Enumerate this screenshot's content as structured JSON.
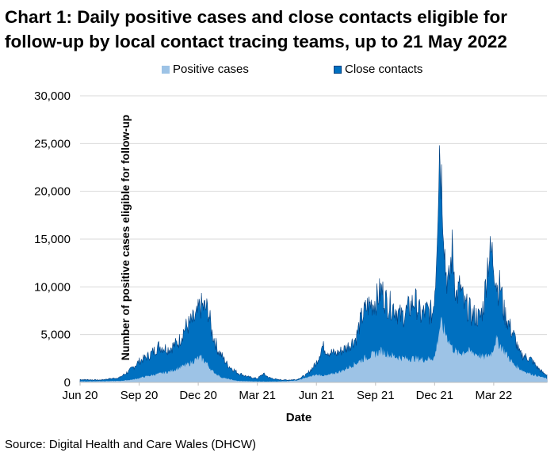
{
  "title": "Chart 1: Daily positive cases and close contacts eligible for follow-up by local contact tracing teams, up to 21 May 2022",
  "source": "Source: Digital Health and Care Wales (DHCW)",
  "colors": {
    "positive": "#9dc3e6",
    "contacts": "#0070c0",
    "contacts_edge": "#003f7f",
    "grid": "#d9d9d9"
  },
  "chart_data": {
    "type": "area",
    "stacked": false,
    "title": "Chart 1: Daily positive cases and close contacts eligible for follow-up by local contact tracing teams, up to 21 May 2022",
    "xlabel": "Date",
    "ylabel": "Number of positive cases eligible for follow-up",
    "ylim": [
      0,
      30000
    ],
    "yticks": [
      0,
      5000,
      10000,
      15000,
      20000,
      25000,
      30000
    ],
    "ytick_labels": [
      "0",
      "5,000",
      "10,000",
      "15,000",
      "20,000",
      "25,000",
      "30,000"
    ],
    "xlim_months": [
      0,
      23.7
    ],
    "xticks": [
      {
        "month": 0,
        "label": "Jun 20"
      },
      {
        "month": 3,
        "label": "Sep 20"
      },
      {
        "month": 6,
        "label": "Dec 20"
      },
      {
        "month": 9,
        "label": "Mar 21"
      },
      {
        "month": 12,
        "label": "Jun 21"
      },
      {
        "month": 15,
        "label": "Sep 21"
      },
      {
        "month": 18,
        "label": "Dec 21"
      },
      {
        "month": 21,
        "label": "Mar 22"
      }
    ],
    "legend_position": "top-center",
    "series": [
      {
        "name": "Positive cases",
        "color": "#9dc3e6",
        "x_month": [
          0,
          2,
          2.7,
          3.3,
          4,
          4.5,
          5,
          5.5,
          5.8,
          6.1,
          6.4,
          6.7,
          7.2,
          8,
          9,
          10,
          11,
          11.5,
          12,
          12.5,
          13.3,
          14,
          14.5,
          15,
          15.3,
          15.7,
          16,
          16.5,
          17,
          17.5,
          18,
          18.3,
          18.6,
          18.9,
          19.2,
          19.6,
          20,
          20.5,
          20.9,
          21.1,
          21.4,
          21.7,
          22,
          22.5,
          23,
          23.7
        ],
        "values": [
          100,
          150,
          300,
          600,
          900,
          1100,
          1500,
          1900,
          2300,
          2600,
          2100,
          1200,
          500,
          150,
          100,
          90,
          200,
          500,
          800,
          700,
          1200,
          2000,
          2600,
          3000,
          3300,
          2900,
          2700,
          2500,
          2500,
          2400,
          2600,
          6200,
          5000,
          3600,
          3000,
          3300,
          3100,
          2600,
          3100,
          4500,
          3700,
          2800,
          1900,
          1200,
          800,
          400
        ]
      },
      {
        "name": "Close contacts",
        "color": "#0070c0",
        "x_month": [
          0,
          1,
          2,
          2.5,
          3,
          3.5,
          4,
          4.5,
          5,
          5.3,
          5.6,
          5.9,
          6.1,
          6.3,
          6.5,
          6.7,
          7,
          7.5,
          8,
          8.5,
          9,
          9.3,
          9.6,
          10,
          10.5,
          11,
          11.5,
          12,
          12.3,
          12.6,
          13,
          13.5,
          14,
          14.3,
          14.6,
          15,
          15.3,
          15.6,
          16,
          16.3,
          16.6,
          17,
          17.3,
          17.6,
          17.9,
          18.05,
          18.25,
          18.4,
          18.55,
          18.7,
          18.9,
          19.1,
          19.3,
          19.5,
          19.7,
          19.9,
          20.1,
          20.3,
          20.5,
          20.7,
          20.9,
          21.05,
          21.2,
          21.35,
          21.5,
          21.7,
          21.9,
          22.1,
          22.3,
          22.6,
          22.9,
          23.2,
          23.5,
          23.7
        ],
        "values": [
          300,
          250,
          500,
          1200,
          2200,
          2800,
          3800,
          3500,
          4200,
          5600,
          6200,
          6800,
          8000,
          7800,
          7600,
          5200,
          3400,
          1800,
          1000,
          600,
          400,
          900,
          500,
          300,
          250,
          300,
          800,
          2000,
          3800,
          3200,
          3000,
          3600,
          4600,
          6800,
          8000,
          8500,
          9700,
          8200,
          7800,
          6800,
          7500,
          8600,
          7000,
          7500,
          7200,
          11000,
          25000,
          19500,
          12000,
          10000,
          14000,
          9000,
          10000,
          8000,
          7800,
          7000,
          7000,
          6700,
          8200,
          12800,
          13600,
          12000,
          9800,
          10200,
          7500,
          6500,
          5400,
          4500,
          3000,
          2700,
          2400,
          1600,
          1000,
          800
        ]
      }
    ]
  },
  "legend": [
    {
      "label": "Positive cases"
    },
    {
      "label": "Close contacts"
    }
  ]
}
